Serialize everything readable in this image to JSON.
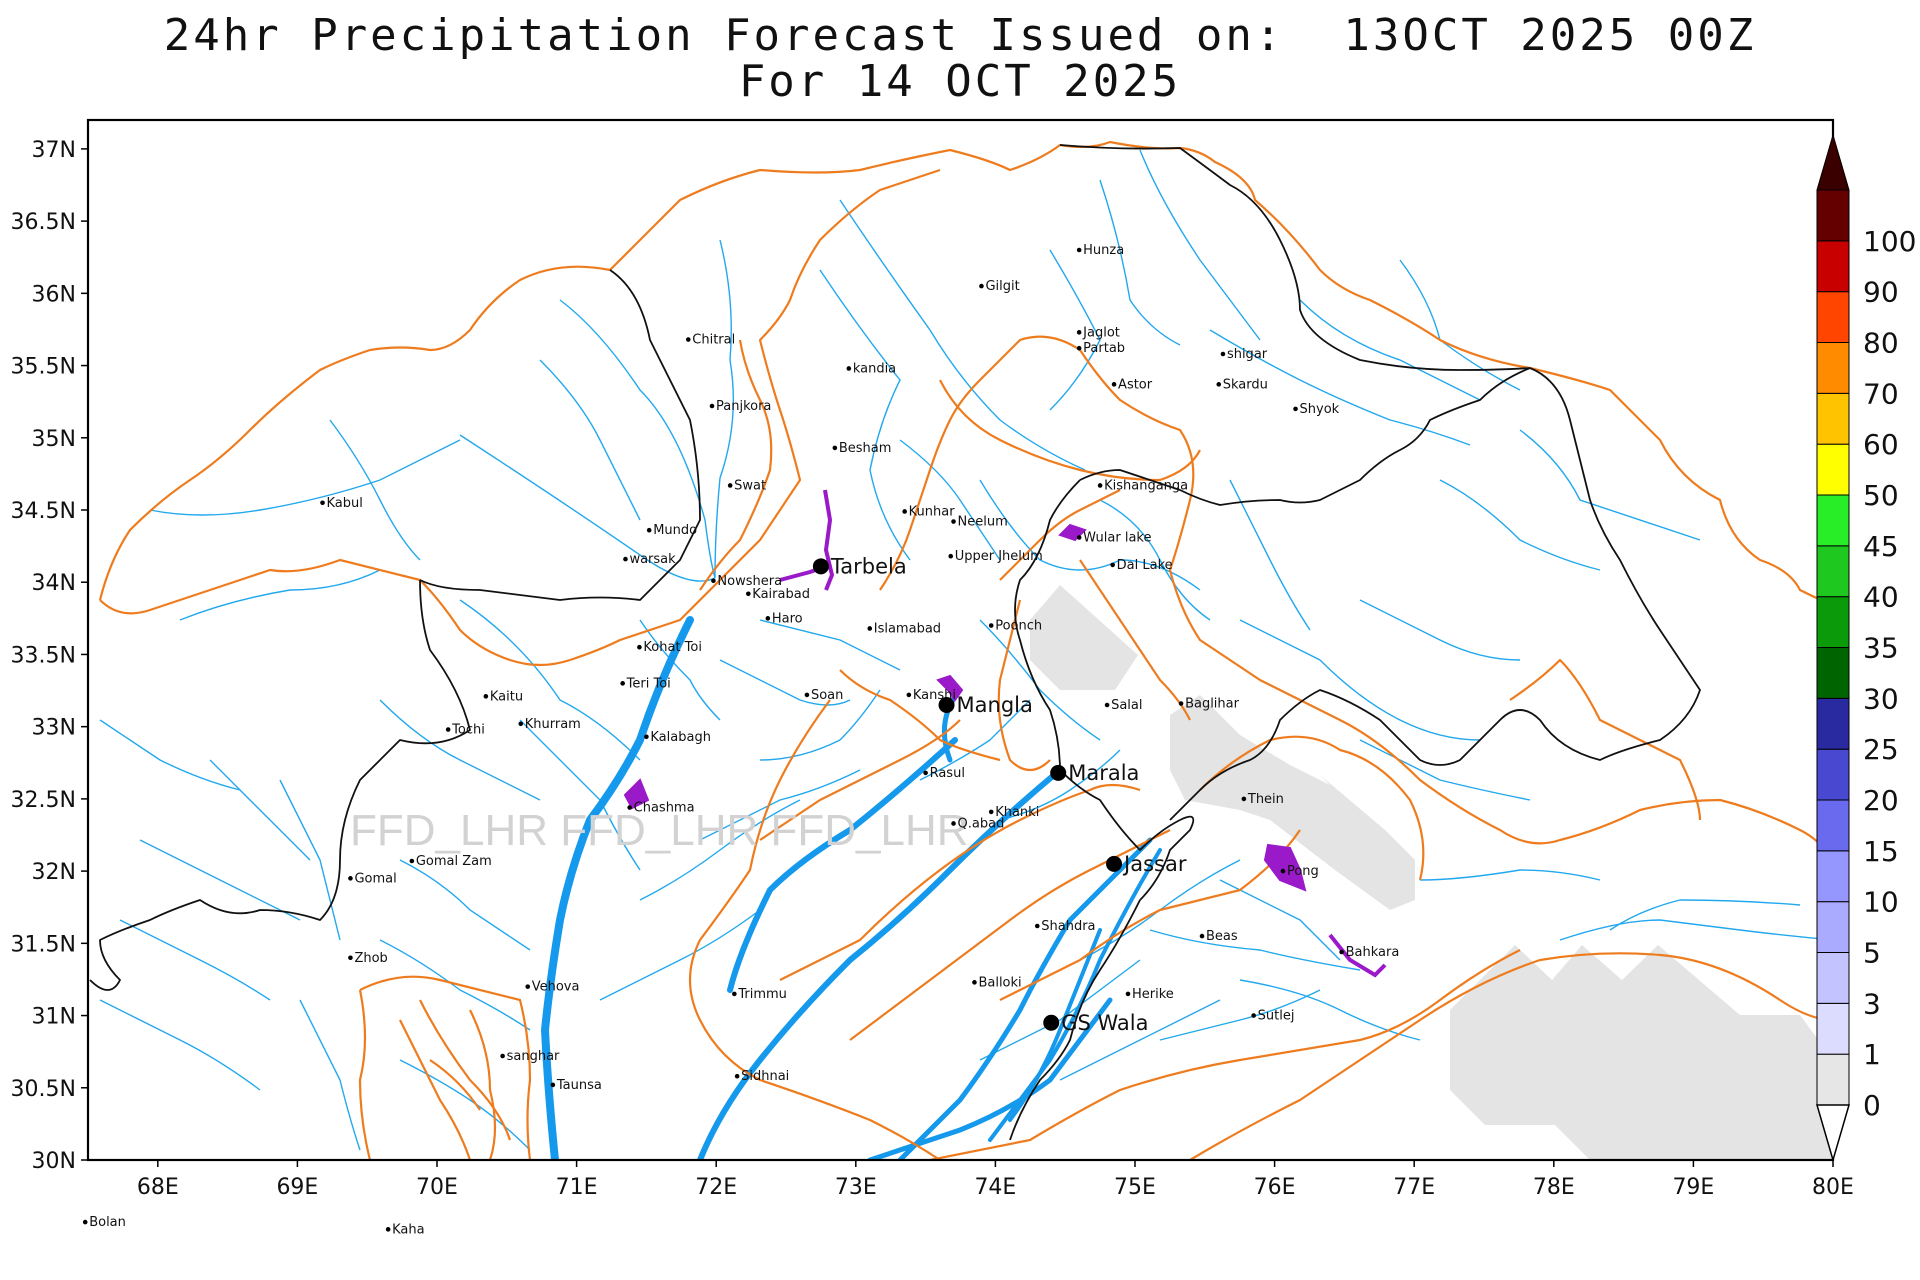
{
  "title": {
    "line1": "24hr Precipitation Forecast Issued on:  13OCT 2025 00Z",
    "line2": "For 14 OCT 2025"
  },
  "watermark": "FFD_LHR FFD_LHR FFD_LHR",
  "axes": {
    "lon_range": [
      67.5,
      80
    ],
    "lat_range": [
      30,
      37.2
    ],
    "x_ticks": [
      {
        "value": 68,
        "label": "68E"
      },
      {
        "value": 69,
        "label": "69E"
      },
      {
        "value": 70,
        "label": "70E"
      },
      {
        "value": 71,
        "label": "71E"
      },
      {
        "value": 72,
        "label": "72E"
      },
      {
        "value": 73,
        "label": "73E"
      },
      {
        "value": 74,
        "label": "74E"
      },
      {
        "value": 75,
        "label": "75E"
      },
      {
        "value": 76,
        "label": "76E"
      },
      {
        "value": 77,
        "label": "77E"
      },
      {
        "value": 78,
        "label": "78E"
      },
      {
        "value": 79,
        "label": "79E"
      },
      {
        "value": 80,
        "label": "80E"
      }
    ],
    "y_ticks": [
      {
        "value": 30,
        "label": "30N"
      },
      {
        "value": 30.5,
        "label": "30.5N"
      },
      {
        "value": 31,
        "label": "31N"
      },
      {
        "value": 31.5,
        "label": "31.5N"
      },
      {
        "value": 32,
        "label": "32N"
      },
      {
        "value": 32.5,
        "label": "32.5N"
      },
      {
        "value": 33,
        "label": "33N"
      },
      {
        "value": 33.5,
        "label": "33.5N"
      },
      {
        "value": 34,
        "label": "34N"
      },
      {
        "value": 34.5,
        "label": "34.5N"
      },
      {
        "value": 35,
        "label": "35N"
      },
      {
        "value": 35.5,
        "label": "35.5N"
      },
      {
        "value": 36,
        "label": "36N"
      },
      {
        "value": 36.5,
        "label": "36.5N"
      },
      {
        "value": 37,
        "label": "37N"
      }
    ]
  },
  "colorbar": {
    "unit": "",
    "levels": [
      "0",
      "1",
      "3",
      "5",
      "10",
      "15",
      "20",
      "25",
      "30",
      "35",
      "40",
      "45",
      "50",
      "60",
      "70",
      "80",
      "90",
      "100"
    ],
    "colors": [
      "#e6e6e6",
      "#dcdcff",
      "#c3c3ff",
      "#aaaaff",
      "#9696ff",
      "#6a6aef",
      "#4848d0",
      "#2a2aa0",
      "#006400",
      "#0a9a0a",
      "#1ec81e",
      "#28ee28",
      "#ffff00",
      "#ffc300",
      "#ff8c00",
      "#ff4500",
      "#c80000",
      "#640000"
    ],
    "over_color": "#3a0000",
    "under_color": "#ffffff"
  },
  "stations": [
    {
      "name": "Gilgit",
      "lon": 73.9,
      "lat": 36.05,
      "major": false
    },
    {
      "name": "Hunza",
      "lon": 74.6,
      "lat": 36.3,
      "major": false
    },
    {
      "name": "Jaglot",
      "lon": 74.6,
      "lat": 35.73,
      "major": false
    },
    {
      "name": "Partab",
      "lon": 74.6,
      "lat": 35.62,
      "major": false
    },
    {
      "name": "shigar",
      "lon": 75.63,
      "lat": 35.58,
      "major": false
    },
    {
      "name": "Chitral",
      "lon": 71.8,
      "lat": 35.68,
      "major": false
    },
    {
      "name": "kandia",
      "lon": 72.95,
      "lat": 35.48,
      "major": false
    },
    {
      "name": "Astor",
      "lon": 74.85,
      "lat": 35.37,
      "major": false
    },
    {
      "name": "Skardu",
      "lon": 75.6,
      "lat": 35.37,
      "major": false
    },
    {
      "name": "Shyok",
      "lon": 76.15,
      "lat": 35.2,
      "major": false
    },
    {
      "name": "Panjkora",
      "lon": 71.97,
      "lat": 35.22,
      "major": false
    },
    {
      "name": "Besham",
      "lon": 72.85,
      "lat": 34.93,
      "major": false
    },
    {
      "name": "Swat",
      "lon": 72.1,
      "lat": 34.67,
      "major": false
    },
    {
      "name": "Kishanganga",
      "lon": 74.75,
      "lat": 34.67,
      "major": false
    },
    {
      "name": "Kabul",
      "lon": 69.18,
      "lat": 34.55,
      "major": false
    },
    {
      "name": "Kunhar",
      "lon": 73.35,
      "lat": 34.49,
      "major": false
    },
    {
      "name": "Neelum",
      "lon": 73.7,
      "lat": 34.42,
      "major": false
    },
    {
      "name": "Mundo",
      "lon": 71.52,
      "lat": 34.36,
      "major": false
    },
    {
      "name": "Wular lake",
      "lon": 74.6,
      "lat": 34.31,
      "major": false
    },
    {
      "name": "Upper Jhelum",
      "lon": 73.68,
      "lat": 34.18,
      "major": false
    },
    {
      "name": "warsak",
      "lon": 71.35,
      "lat": 34.16,
      "major": false
    },
    {
      "name": "Dal Lake",
      "lon": 74.84,
      "lat": 34.12,
      "major": false
    },
    {
      "name": "Tarbela",
      "lon": 72.75,
      "lat": 34.11,
      "major": true
    },
    {
      "name": "Nowshera",
      "lon": 71.98,
      "lat": 34.01,
      "major": false
    },
    {
      "name": "Kairabad",
      "lon": 72.23,
      "lat": 33.92,
      "major": false
    },
    {
      "name": "Haro",
      "lon": 72.37,
      "lat": 33.75,
      "major": false
    },
    {
      "name": "Poonch",
      "lon": 73.97,
      "lat": 33.7,
      "major": false
    },
    {
      "name": "Islamabad",
      "lon": 73.1,
      "lat": 33.68,
      "major": false
    },
    {
      "name": "Kohat Toi",
      "lon": 71.45,
      "lat": 33.55,
      "major": false
    },
    {
      "name": "Teri Toi",
      "lon": 71.33,
      "lat": 33.3,
      "major": false
    },
    {
      "name": "Kaitu",
      "lon": 70.35,
      "lat": 33.21,
      "major": false
    },
    {
      "name": "Soan",
      "lon": 72.65,
      "lat": 33.22,
      "major": false
    },
    {
      "name": "Kanshi",
      "lon": 73.38,
      "lat": 33.22,
      "major": false
    },
    {
      "name": "Mangla",
      "lon": 73.65,
      "lat": 33.15,
      "major": true
    },
    {
      "name": "Salal",
      "lon": 74.8,
      "lat": 33.15,
      "major": false
    },
    {
      "name": "Baglihar",
      "lon": 75.33,
      "lat": 33.16,
      "major": false
    },
    {
      "name": "Khurram",
      "lon": 70.6,
      "lat": 33.02,
      "major": false
    },
    {
      "name": "Tochi",
      "lon": 70.08,
      "lat": 32.98,
      "major": false
    },
    {
      "name": "Kalabagh",
      "lon": 71.5,
      "lat": 32.93,
      "major": false
    },
    {
      "name": "Marala",
      "lon": 74.45,
      "lat": 32.68,
      "major": true
    },
    {
      "name": "Rasul",
      "lon": 73.5,
      "lat": 32.68,
      "major": false
    },
    {
      "name": "Chashma",
      "lon": 71.38,
      "lat": 32.44,
      "major": false
    },
    {
      "name": "Thein",
      "lon": 75.78,
      "lat": 32.5,
      "major": false
    },
    {
      "name": "Khanki",
      "lon": 73.97,
      "lat": 32.41,
      "major": false
    },
    {
      "name": "Q.abad",
      "lon": 73.7,
      "lat": 32.33,
      "major": false
    },
    {
      "name": "Gomal Zam",
      "lon": 69.82,
      "lat": 32.07,
      "major": false
    },
    {
      "name": "Jassar",
      "lon": 74.85,
      "lat": 32.05,
      "major": true
    },
    {
      "name": "Pong",
      "lon": 76.06,
      "lat": 32.0,
      "major": false
    },
    {
      "name": "Gomal",
      "lon": 69.38,
      "lat": 31.95,
      "major": false
    },
    {
      "name": "Shahdra",
      "lon": 74.3,
      "lat": 31.62,
      "major": false
    },
    {
      "name": "Beas",
      "lon": 75.48,
      "lat": 31.55,
      "major": false
    },
    {
      "name": "Bahkara",
      "lon": 76.48,
      "lat": 31.44,
      "major": false
    },
    {
      "name": "Zhob",
      "lon": 69.38,
      "lat": 31.4,
      "major": false
    },
    {
      "name": "Balloki",
      "lon": 73.85,
      "lat": 31.23,
      "major": false
    },
    {
      "name": "Vehova",
      "lon": 70.65,
      "lat": 31.2,
      "major": false
    },
    {
      "name": "Taunsa",
      "lon": 70.83,
      "lat": 30.52,
      "major": false
    },
    {
      "name": "Herike",
      "lon": 74.95,
      "lat": 31.15,
      "major": false
    },
    {
      "name": "Trimmu",
      "lon": 72.13,
      "lat": 31.15,
      "major": false
    },
    {
      "name": "Sutlej",
      "lon": 75.85,
      "lat": 31.0,
      "major": false
    },
    {
      "name": "GS Wala",
      "lon": 74.4,
      "lat": 30.95,
      "major": true
    },
    {
      "name": "sanghar",
      "lon": 70.47,
      "lat": 30.72,
      "major": false
    },
    {
      "name": "Sidhnai",
      "lon": 72.15,
      "lat": 30.58,
      "major": false
    },
    {
      "name": "Bolan",
      "lon": 67.48,
      "lat": 29.57,
      "major": false
    },
    {
      "name": "Kaha",
      "lon": 69.65,
      "lat": 29.52,
      "major": false
    }
  ]
}
